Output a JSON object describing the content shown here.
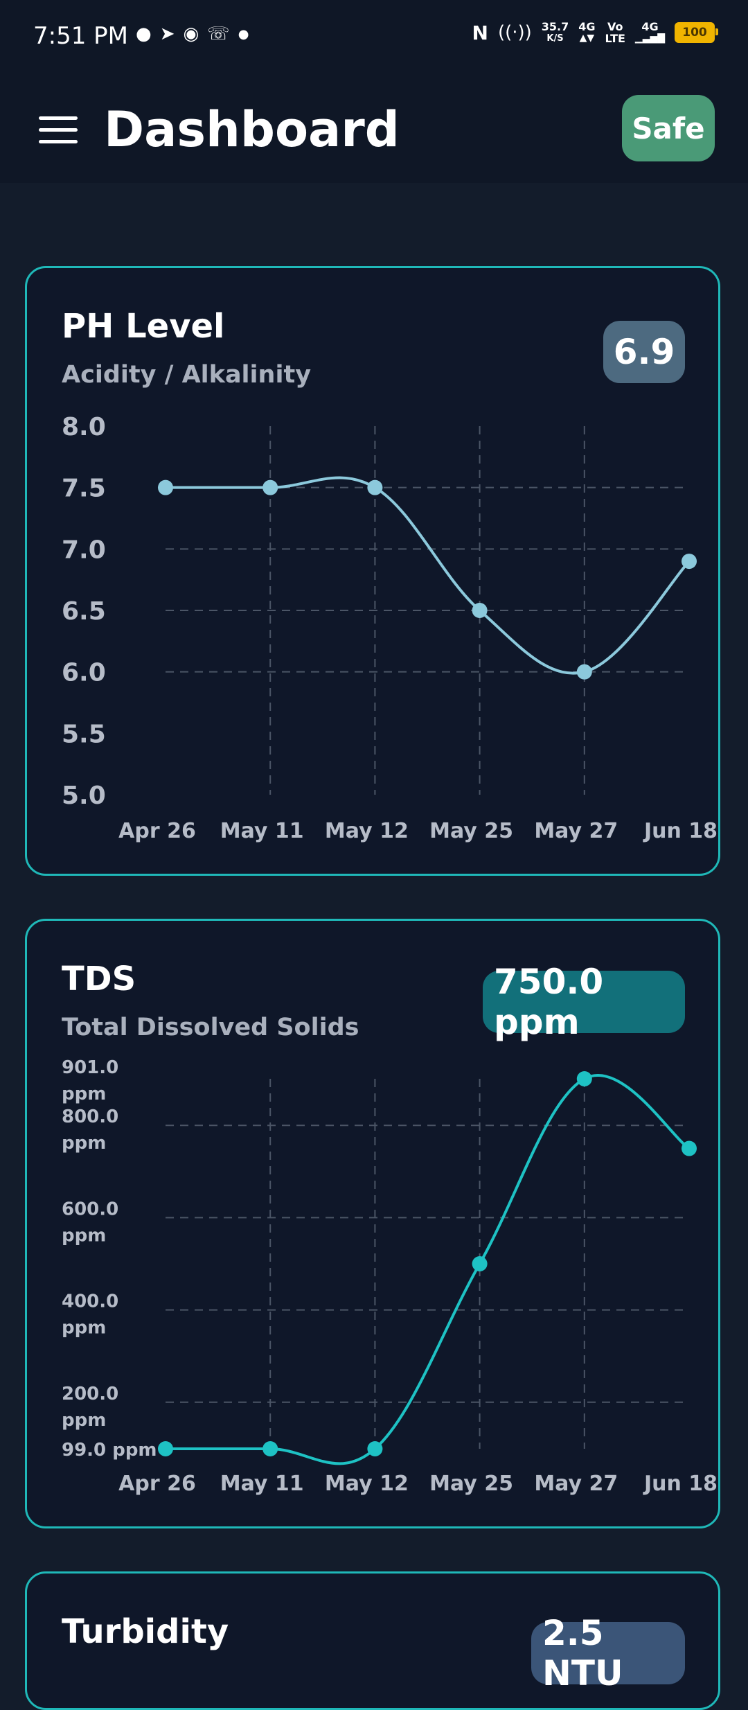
{
  "status_bar": {
    "time": "7:51 PM",
    "net_speed_top": "35.7",
    "net_speed_unit": "K/S",
    "net1": "4G",
    "volte_top": "Vo",
    "volte_bottom": "LTE",
    "net2": "4G",
    "battery": "100",
    "icons": [
      "game-controller-icon",
      "telegram-icon",
      "discord-icon",
      "whatsapp-icon",
      "dot-icon",
      "nfc-icon",
      "hotspot-icon",
      "signal-icon"
    ]
  },
  "appbar": {
    "title": "Dashboard",
    "status_badge": "Safe",
    "status_color": "#4a9a77"
  },
  "cards": {
    "ph": {
      "title": "PH Level",
      "subtitle": "Acidity / Alkalinity",
      "value": "6.9",
      "badge_color": "#4d6a80",
      "line_color": "#8cc9dc"
    },
    "tds": {
      "title": "TDS",
      "subtitle": "Total Dissolved Solids",
      "value": "750.0 ppm",
      "badge_color": "#12707a",
      "line_color": "#1ec2c4"
    },
    "turbidity": {
      "title": "Turbidity",
      "value": "2.5 NTU",
      "badge_color": "#3b5578"
    }
  },
  "chart_data": [
    {
      "type": "line",
      "categories": [
        "Apr 26",
        "May 11",
        "May 12",
        "May 25",
        "May 27",
        "Jun 18"
      ],
      "values": [
        7.5,
        7.5,
        7.5,
        6.5,
        6.0,
        6.9
      ],
      "ylim": [
        5.0,
        8.0
      ],
      "yticks": [
        "5.0",
        "5.5",
        "6.0",
        "6.5",
        "7.0",
        "7.5",
        "8.0"
      ],
      "grid": true
    },
    {
      "type": "line",
      "categories": [
        "Apr 26",
        "May 11",
        "May 12",
        "May 25",
        "May 27",
        "Jun 18"
      ],
      "values": [
        99,
        99,
        99,
        500,
        901,
        750
      ],
      "ylim": [
        99,
        901
      ],
      "yticks": [
        "99.0 ppm",
        "200.0 ppm",
        "400.0 ppm",
        "600.0 ppm",
        "800.0 ppm",
        "901.0 ppm"
      ],
      "grid": true
    }
  ]
}
